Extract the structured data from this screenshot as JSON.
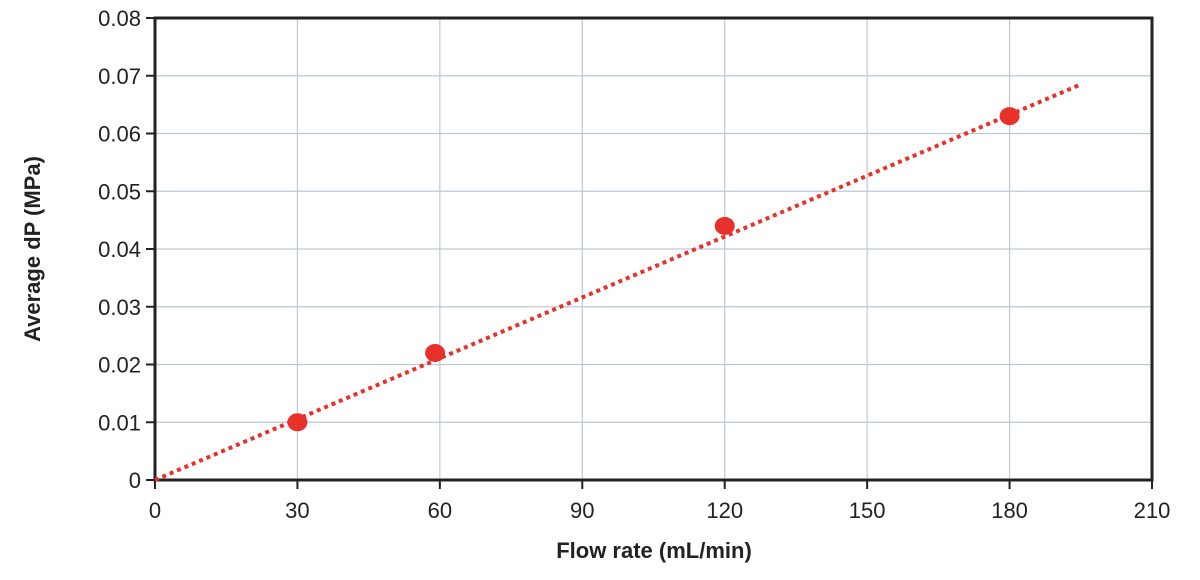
{
  "chart_data": {
    "type": "scatter",
    "title": "",
    "xlabel": "Flow rate (mL/min)",
    "ylabel": "Average dP (MPa)",
    "xlim": [
      0,
      210
    ],
    "ylim": [
      0,
      0.08
    ],
    "x_ticks": [
      "0",
      "30",
      "60",
      "90",
      "120",
      "150",
      "180",
      "210"
    ],
    "y_ticks": [
      "0",
      "0.01",
      "0.02",
      "0.03",
      "0.04",
      "0.05",
      "0.06",
      "0.07",
      "0.08"
    ],
    "grid": true,
    "legend": "none",
    "series": [
      {
        "x": [
          30,
          59,
          120,
          180
        ],
        "y": [
          0.01,
          0.022,
          0.044,
          0.063
        ],
        "marker_color": "#e8312a"
      }
    ],
    "trendline": {
      "style": "dotted",
      "color": "#e8312a",
      "x": [
        0,
        195
      ],
      "y": [
        0,
        0.0685
      ]
    },
    "colors": {
      "grid": "#b9c9d9",
      "axes": "#222222"
    }
  }
}
